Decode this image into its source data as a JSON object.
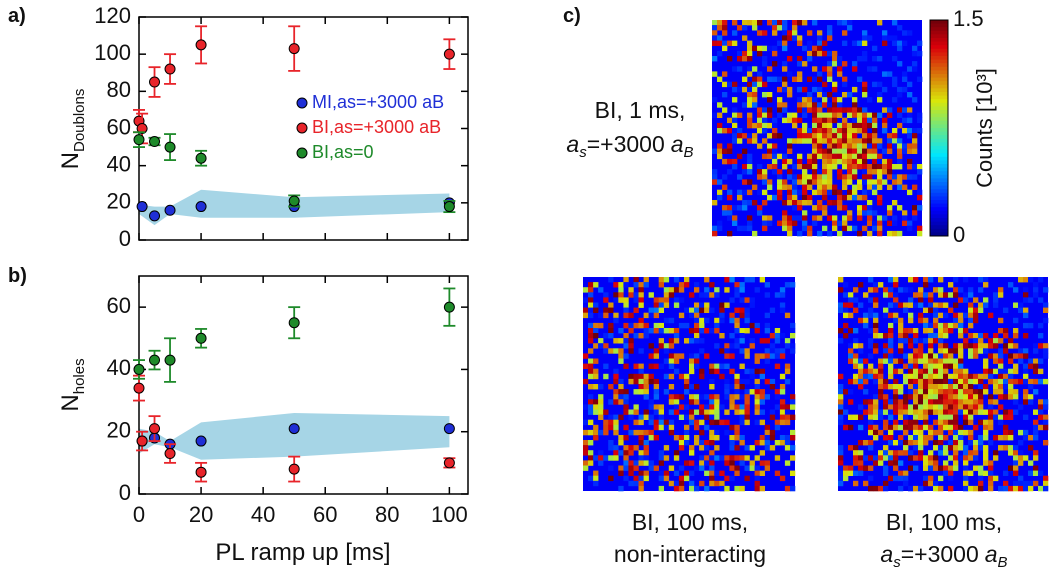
{
  "chart_data": [
    {
      "type": "scatter",
      "panel": "a)",
      "ylabel": [
        "N",
        "Doublons"
      ],
      "xlim": [
        0,
        106
      ],
      "xticks": [
        0,
        20,
        40,
        60,
        80,
        100
      ],
      "xtick_labels": false,
      "ylim": [
        0,
        120
      ],
      "yticks": [
        0,
        20,
        40,
        60,
        80,
        100,
        120
      ],
      "legend": "right",
      "band": {
        "color": "#a6d5e6",
        "x": [
          0,
          5,
          10,
          20,
          50,
          100
        ],
        "lower": [
          14,
          8,
          14,
          12,
          12,
          15
        ],
        "upper": [
          19,
          18,
          18,
          27,
          23,
          25
        ]
      },
      "series": [
        {
          "name": "MI,as=+3000 aB",
          "color": "#1f2fd6",
          "x": [
            1,
            5,
            10,
            20,
            50,
            100
          ],
          "values": [
            18,
            13,
            16,
            18,
            18,
            20
          ]
        },
        {
          "name": "BI,as=+3000 aB",
          "color": "#e8242a",
          "x": [
            0,
            1,
            5,
            10,
            20,
            50,
            100
          ],
          "values": [
            64,
            60,
            85,
            92,
            105,
            103,
            100
          ],
          "errors": [
            6,
            8,
            8,
            8,
            10,
            12,
            8
          ]
        },
        {
          "name": "BI,as=0",
          "color": "#1e8a2a",
          "x": [
            0,
            5,
            10,
            20,
            50,
            100
          ],
          "values": [
            54,
            53,
            50,
            44,
            21,
            18
          ],
          "errors": [
            4,
            2,
            7,
            4,
            3,
            3
          ]
        }
      ]
    },
    {
      "type": "scatter",
      "panel": "b)",
      "ylabel": [
        "N",
        "holes"
      ],
      "xlabel": "PL ramp up [ms]",
      "xlim": [
        0,
        106
      ],
      "xticks": [
        0,
        20,
        40,
        60,
        80,
        100
      ],
      "xtick_labels": true,
      "ylim": [
        0,
        70
      ],
      "yticks": [
        0,
        20,
        40,
        60
      ],
      "band": {
        "color": "#a6d5e6",
        "x": [
          0,
          5,
          10,
          20,
          50,
          100
        ],
        "lower": [
          13,
          16,
          15,
          11,
          12,
          15
        ],
        "upper": [
          21,
          20,
          17,
          23,
          26,
          25
        ]
      },
      "series": [
        {
          "color": "#1f2fd6",
          "x": [
            1,
            5,
            10,
            20,
            50,
            100
          ],
          "values": [
            17,
            18,
            16,
            17,
            21,
            21
          ]
        },
        {
          "color": "#e8242a",
          "x": [
            0,
            1,
            5,
            10,
            20,
            50,
            100
          ],
          "values": [
            34,
            17,
            21,
            13,
            7,
            8,
            10
          ],
          "errors": [
            4,
            3,
            4,
            3,
            3,
            4,
            1.5
          ]
        },
        {
          "color": "#1e8a2a",
          "x": [
            0,
            5,
            10,
            20,
            50,
            100
          ],
          "values": [
            40,
            43,
            43,
            50,
            55,
            60
          ],
          "errors": [
            3,
            3,
            7,
            3,
            5,
            6
          ]
        }
      ]
    }
  ],
  "image_panel": {
    "panel": "c)",
    "colorbar": {
      "clim": [
        0,
        1.5
      ],
      "ticks": [
        0,
        1.5
      ],
      "label": "Counts [10³]"
    },
    "captions": [
      {
        "line1": "BI, 1 ms,",
        "line2": [
          "a",
          "s",
          "=+3000",
          "a",
          "B"
        ]
      },
      {
        "line1": "BI, 100 ms,",
        "line2": [
          "non-interacting"
        ]
      },
      {
        "line1": "BI, 100 ms,",
        "line2": [
          "a",
          "s",
          "=+3000",
          "a",
          "B"
        ]
      }
    ]
  }
}
